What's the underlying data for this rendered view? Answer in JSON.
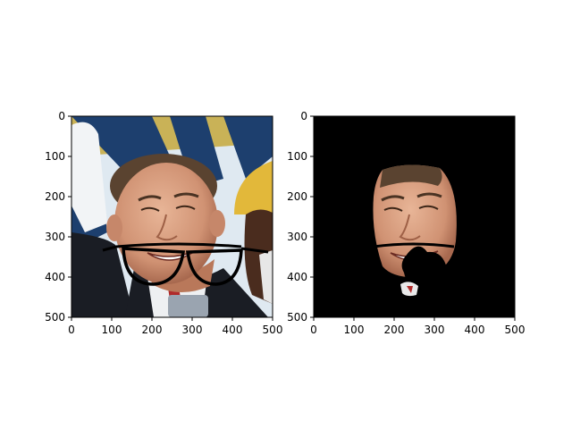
{
  "panels": [
    {
      "id": "left",
      "content": "photo of a smiling man in a dark suit and light shirt, raising an arm, with a drawn pair of black glasses overlaid across his mouth; background has blue and white banner stripes and a second person in a yellow hat at the right edge",
      "x_ticks": [
        "0",
        "100",
        "200",
        "300",
        "400",
        "500"
      ],
      "y_ticks": [
        "0",
        "100",
        "200",
        "300",
        "400",
        "500"
      ]
    },
    {
      "id": "right",
      "content": "same face segmented on a black background, with the glasses overlay and a black occluding blob over the chin; a small patch of tie visible below",
      "x_ticks": [
        "0",
        "100",
        "200",
        "300",
        "400",
        "500"
      ],
      "y_ticks": [
        "0",
        "100",
        "200",
        "300",
        "400",
        "500"
      ]
    }
  ],
  "colors": {
    "axis": "#000000",
    "banner_blue": "#1d3f6e",
    "banner_light": "#dfe9f1",
    "skin": "#d49a7a",
    "suit": "#1a1d24",
    "hat": "#e2b83a",
    "background_mask": "#000000"
  }
}
